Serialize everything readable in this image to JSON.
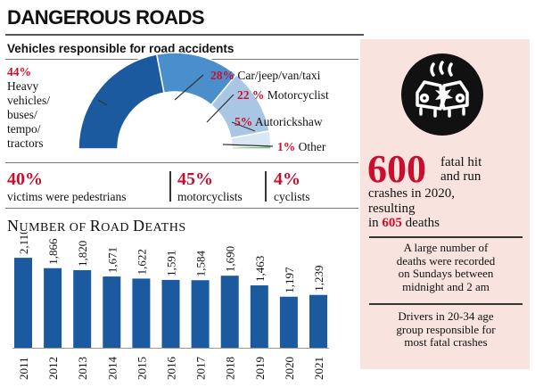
{
  "header": {
    "title": "DANGEROUS ROADS"
  },
  "donut": {
    "subtitle": "Vehicles responsible for road accidents",
    "heavy": {
      "pct": "44%",
      "label_lines": [
        "Heavy",
        "vehicles/",
        "buses/",
        "tempo/",
        "tractors"
      ]
    },
    "car": {
      "pct": "28%",
      "label": "Car/jeep/van/taxi"
    },
    "moto": {
      "pct": "22 %",
      "label": "Motorcyclist"
    },
    "auto": {
      "pct": "5%",
      "label": "Autorickshaw"
    },
    "other": {
      "pct": "1%",
      "label": "Other"
    }
  },
  "victims": [
    {
      "pct": "40%",
      "label": "victims were pedestrians"
    },
    {
      "pct": "45%",
      "label": "motorcyclists"
    },
    {
      "pct": "4%",
      "label": "cyclists"
    }
  ],
  "deaths_title": {
    "first": "N",
    "rest": "UMBER OF ",
    "r": "R",
    "oad": "OAD ",
    "d": "D",
    "eaths": "EATHS"
  },
  "panel": {
    "stat_big": "600",
    "stat_text_1": "fatal hit",
    "stat_text_2": "and run",
    "stat_text_3": "crashes in 2020,",
    "stat_text_4": "resulting",
    "stat_text_5_pre": "in ",
    "stat_text_5_num": "605",
    "stat_text_5_post": " deaths",
    "note1": [
      "A large number of",
      "deaths were recorded",
      "on Sundays between",
      "midnight and 2 am"
    ],
    "note2": [
      "Drivers in 20-34 age",
      "group responsible for",
      "most fatal crashes"
    ]
  },
  "colors": {
    "bar": "#1c5aa0",
    "red": "#c8102e",
    "panel": "#f9e3df"
  },
  "chart_data": [
    {
      "type": "pie",
      "title": "Vehicles responsible for road accidents",
      "categories": [
        "Heavy vehicles/buses/tempo/tractors",
        "Car/jeep/van/taxi",
        "Motorcyclist",
        "Autorickshaw",
        "Other"
      ],
      "values": [
        44,
        28,
        22,
        5,
        1
      ],
      "colors": [
        "#1c5aa0",
        "#4a8fcb",
        "#a9c7e5",
        "#d9e7f4",
        "#6cc27a"
      ]
    },
    {
      "type": "bar",
      "title": "Number of Road Deaths",
      "categories": [
        "2011",
        "2012",
        "2013",
        "2014",
        "2015",
        "2016",
        "2017",
        "2018",
        "2019",
        "2020",
        "2021"
      ],
      "values": [
        2110,
        1866,
        1820,
        1671,
        1622,
        1591,
        1584,
        1690,
        1463,
        1197,
        1239
      ],
      "value_labels": [
        "2,110",
        "1,866",
        "1,820",
        "1,671",
        "1,622",
        "1,591",
        "1,584",
        "1,690",
        "1,463",
        "1,197",
        "1,239"
      ],
      "ylim": [
        0,
        2600
      ]
    }
  ]
}
